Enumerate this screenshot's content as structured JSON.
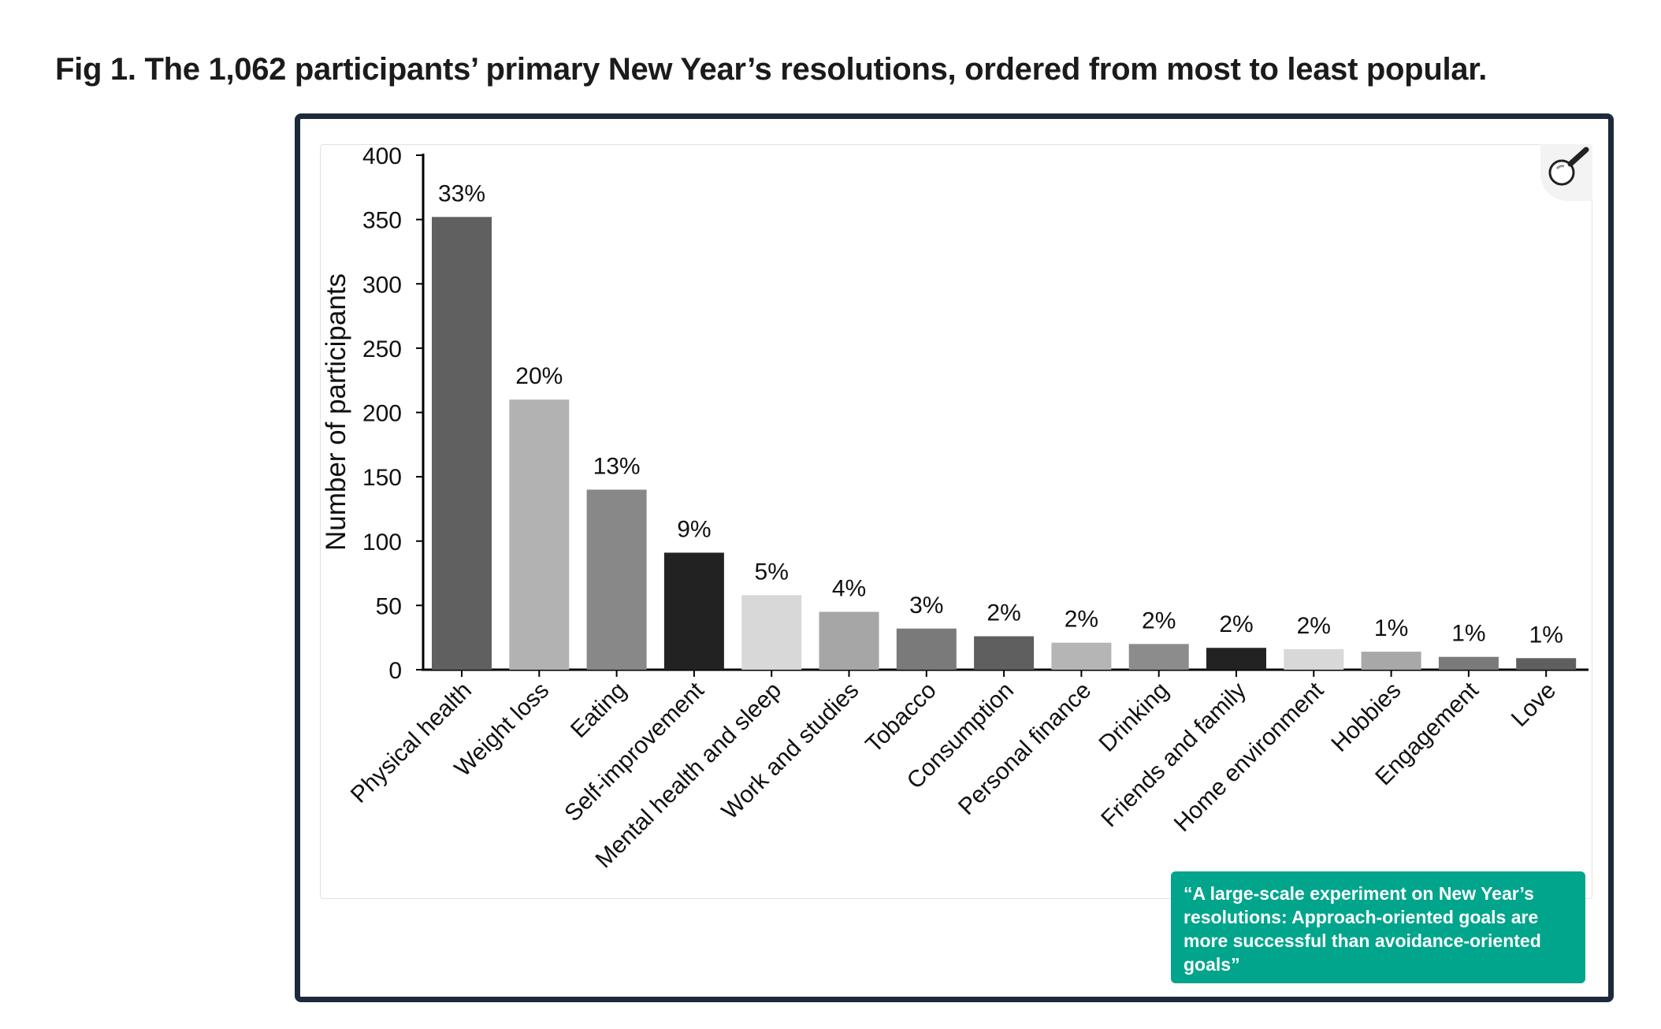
{
  "figure": {
    "caption": "Fig 1. The 1,062 participants’ primary New Year’s resolutions, ordered from most to least popular.",
    "source_title": "“A large-scale experiment on New Year’s resolutions: Approach-oriented goals are more successful than avoidance-oriented goals”",
    "zoom_icon": "magnifier-icon"
  },
  "chart_data": {
    "type": "bar",
    "ylabel": "Number of participants",
    "xlabel": "",
    "ylim": [
      0,
      400
    ],
    "yticks": [
      0,
      50,
      100,
      150,
      200,
      250,
      300,
      350,
      400
    ],
    "categories": [
      "Physical health",
      "Weight loss",
      "Eating",
      "Self-improvement",
      "Mental health and sleep",
      "Work and studies",
      "Tobacco",
      "Consumption",
      "Personal finance",
      "Drinking",
      "Friends and family",
      "Home environment",
      "Hobbies",
      "Engagement",
      "Love"
    ],
    "values": [
      352,
      210,
      140,
      91,
      58,
      45,
      32,
      26,
      21,
      20,
      17,
      16,
      14,
      10,
      9
    ],
    "labels": [
      "33%",
      "20%",
      "13%",
      "9%",
      "5%",
      "4%",
      "3%",
      "2%",
      "2%",
      "2%",
      "2%",
      "2%",
      "1%",
      "1%",
      "1%"
    ],
    "bar_colors": [
      "#606060",
      "#b2b2b2",
      "#888888",
      "#222222",
      "#d8d8d8",
      "#a6a6a6",
      "#7a7a7a",
      "#5f5f5f",
      "#b5b5b5",
      "#8c8c8c",
      "#222222",
      "#d8d8d8",
      "#a8a8a8",
      "#7a7a7a",
      "#5f5f5f"
    ],
    "grid": false,
    "legend": "none"
  },
  "colors": {
    "frame": "#1d2a3b",
    "badge": "#00a58c",
    "axis": "#000000"
  }
}
